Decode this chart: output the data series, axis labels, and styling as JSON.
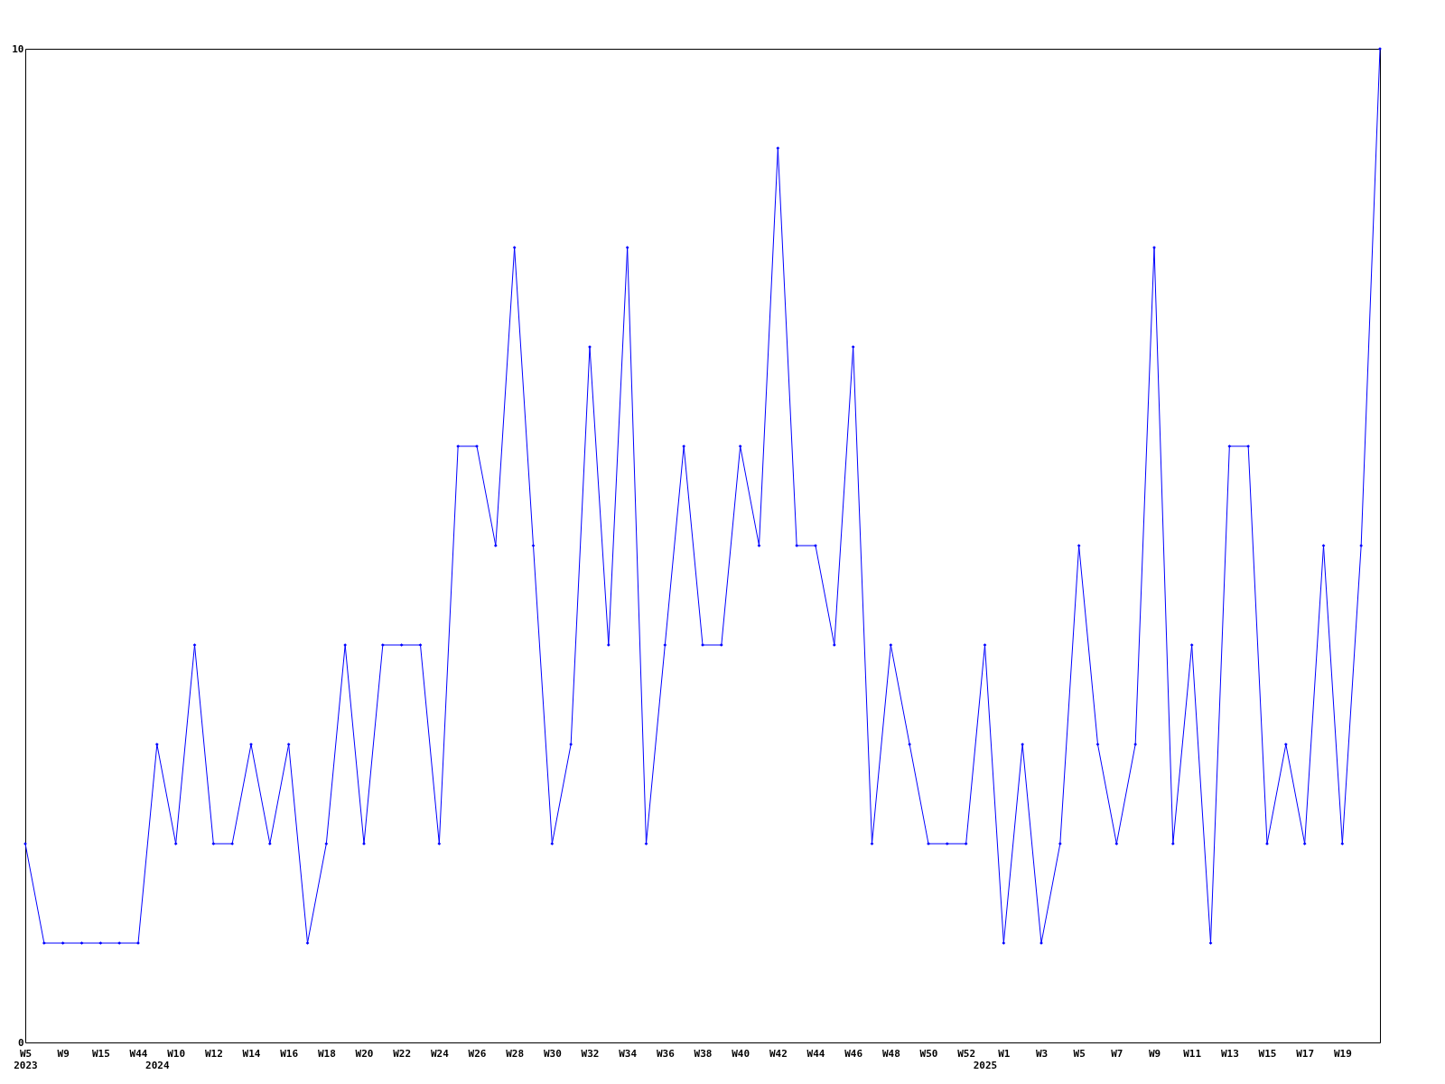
{
  "chart_data": {
    "type": "line",
    "categories": [
      "W5\n2023",
      null,
      "W9",
      null,
      "W15",
      null,
      "W44",
      "\n2024",
      "W10",
      null,
      "W12",
      null,
      "W14",
      null,
      "W16",
      null,
      "W18",
      null,
      "W20",
      null,
      "W22",
      null,
      "W24",
      null,
      "W26",
      null,
      "W28",
      null,
      "W30",
      null,
      "W32",
      null,
      "W34",
      null,
      "W36",
      null,
      "W38",
      null,
      "W40",
      null,
      "W42",
      null,
      "W44",
      null,
      "W46",
      null,
      "W48",
      null,
      "W50",
      null,
      "W52",
      "\n2025",
      "W1",
      null,
      "W3",
      null,
      "W5",
      null,
      "W7",
      null,
      "W9",
      null,
      "W11",
      null,
      "W13",
      null,
      "W15",
      null,
      "W17",
      null,
      "W19",
      null,
      null
    ],
    "series": [
      {
        "color": "#0000ff",
        "values": [
          2,
          1,
          1,
          1,
          1,
          1,
          1,
          3,
          2,
          4,
          2,
          2,
          3,
          2,
          3,
          1,
          2,
          4,
          2,
          4,
          4,
          4,
          2,
          6,
          6,
          5,
          8,
          5,
          2,
          3,
          7,
          4,
          8,
          2,
          4,
          6,
          4,
          4,
          6,
          5,
          9,
          5,
          5,
          4,
          7,
          2,
          4,
          3,
          2,
          2,
          2,
          4,
          1,
          3,
          1,
          2,
          5,
          3,
          2,
          3,
          8,
          2,
          4,
          1,
          6,
          6,
          2,
          3,
          2,
          5,
          2,
          5,
          10
        ]
      }
    ],
    "ylim": [
      0,
      10
    ],
    "yticks": [
      0,
      10
    ],
    "grid": false,
    "legend": false,
    "marker": "diamond",
    "line_style": "solid"
  }
}
